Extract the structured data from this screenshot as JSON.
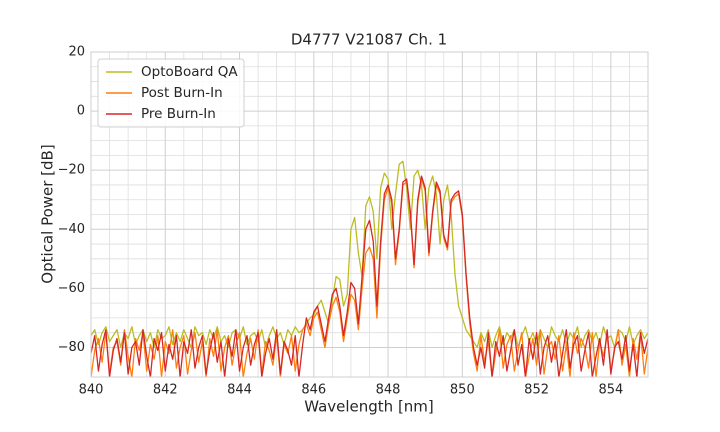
{
  "chart_data": {
    "type": "line",
    "title": "D4777 V21087 Ch. 1",
    "x_label": "Wavelength [nm]",
    "y_label": "Optical Power [dB]",
    "xlim": [
      840,
      855
    ],
    "xticks": [
      840,
      842,
      844,
      846,
      848,
      850,
      852,
      854
    ],
    "ylim": [
      -90,
      20
    ],
    "yticks": [
      {
        "value": -80,
        "label": "−80"
      },
      {
        "value": -60,
        "label": "−60"
      },
      {
        "value": -40,
        "label": "−40"
      },
      {
        "value": -20,
        "label": "−20"
      },
      0,
      20
    ],
    "grid": true,
    "minor_grid_divisions": 4,
    "legend": "upper left",
    "x": [
      840,
      840.1,
      840.2,
      840.3,
      840.4,
      840.5,
      840.6,
      840.7,
      840.8,
      840.9,
      841,
      841.1,
      841.2,
      841.3,
      841.4,
      841.5,
      841.6,
      841.7,
      841.8,
      841.9,
      842,
      842.1,
      842.2,
      842.3,
      842.4,
      842.5,
      842.6,
      842.7,
      842.8,
      842.9,
      843,
      843.1,
      843.2,
      843.3,
      843.4,
      843.5,
      843.6,
      843.7,
      843.8,
      843.9,
      844,
      844.1,
      844.2,
      844.3,
      844.4,
      844.5,
      844.6,
      844.7,
      844.8,
      844.9,
      845,
      845.1,
      845.2,
      845.3,
      845.4,
      845.5,
      845.6,
      845.7,
      845.8,
      845.9,
      846,
      846.1,
      846.2,
      846.3,
      846.4,
      846.5,
      846.6,
      846.7,
      846.8,
      846.9,
      847,
      847.1,
      847.2,
      847.3,
      847.4,
      847.5,
      847.6,
      847.7,
      847.8,
      847.9,
      848,
      848.1,
      848.2,
      848.3,
      848.4,
      848.5,
      848.6,
      848.7,
      848.8,
      848.9,
      849,
      849.1,
      849.2,
      849.3,
      849.4,
      849.5,
      849.6,
      849.7,
      849.8,
      849.9,
      850,
      850.1,
      850.2,
      850.3,
      850.4,
      850.5,
      850.6,
      850.7,
      850.8,
      850.9,
      851,
      851.1,
      851.2,
      851.3,
      851.4,
      851.5,
      851.6,
      851.7,
      851.8,
      851.9,
      852,
      852.1,
      852.2,
      852.3,
      852.4,
      852.5,
      852.6,
      852.7,
      852.8,
      852.9,
      853,
      853.1,
      853.2,
      853.3,
      853.4,
      853.5,
      853.6,
      853.7,
      853.8,
      853.9,
      854,
      854.1,
      854.2,
      854.3,
      854.4,
      854.5,
      854.6,
      854.7,
      854.8,
      854.9,
      855
    ],
    "series": [
      {
        "name": "OptoBoard QA",
        "color": "#bcbd22",
        "values": [
          -76,
          -74,
          -79,
          -75,
          -73,
          -78,
          -76,
          -74,
          -80,
          -75,
          -77,
          -73,
          -79,
          -76,
          -74,
          -78,
          -75,
          -80,
          -74,
          -77,
          -76,
          -73,
          -79,
          -75,
          -78,
          -74,
          -77,
          -80,
          -73,
          -76,
          -75,
          -79,
          -74,
          -77,
          -73,
          -78,
          -76,
          -80,
          -75,
          -74,
          -77,
          -73,
          -79,
          -76,
          -75,
          -78,
          -74,
          -80,
          -76,
          -73,
          -77,
          -75,
          -79,
          -74,
          -76,
          -73,
          -75,
          -74,
          -72,
          -70,
          -69,
          -66,
          -64,
          -68,
          -72,
          -64,
          -56,
          -57,
          -66,
          -62,
          -40,
          -36,
          -48,
          -56,
          -32,
          -29,
          -34,
          -50,
          -26,
          -21,
          -23,
          -40,
          -28,
          -18,
          -17,
          -26,
          -40,
          -22,
          -20,
          -25,
          -40,
          -26,
          -22,
          -28,
          -45,
          -30,
          -25,
          -35,
          -55,
          -66,
          -70,
          -74,
          -76,
          -78,
          -80,
          -75,
          -78,
          -74,
          -80,
          -76,
          -73,
          -79,
          -75,
          -77,
          -74,
          -80,
          -76,
          -73,
          -78,
          -75,
          -79,
          -74,
          -77,
          -80,
          -73,
          -76,
          -78,
          -74,
          -79,
          -75,
          -77,
          -73,
          -80,
          -76,
          -74,
          -78,
          -75,
          -79,
          -73,
          -77,
          -76,
          -80,
          -74,
          -75,
          -78,
          -73,
          -79,
          -76,
          -74,
          -77,
          -75
        ]
      },
      {
        "name": "Post Burn-In",
        "color": "#ff7f0e",
        "values": [
          -90,
          -81,
          -77,
          -85,
          -75,
          -89,
          -80,
          -78,
          -86,
          -74,
          -83,
          -90,
          -77,
          -81,
          -75,
          -88,
          -79,
          -84,
          -76,
          -90,
          -78,
          -82,
          -74,
          -87,
          -80,
          -76,
          -89,
          -81,
          -75,
          -85,
          -78,
          -90,
          -77,
          -83,
          -74,
          -88,
          -80,
          -76,
          -86,
          -79,
          -75,
          -90,
          -82,
          -77,
          -84,
          -74,
          -89,
          -78,
          -81,
          -86,
          -76,
          -90,
          -79,
          -82,
          -76,
          -88,
          -79,
          -74,
          -72,
          -76,
          -70,
          -68,
          -74,
          -80,
          -72,
          -66,
          -63,
          -68,
          -78,
          -70,
          -62,
          -64,
          -74,
          -60,
          -48,
          -46,
          -50,
          -70,
          -46,
          -30,
          -26,
          -31,
          -52,
          -41,
          -25,
          -24,
          -35,
          -53,
          -31,
          -23,
          -27,
          -49,
          -35,
          -25,
          -28,
          -43,
          -47,
          -31,
          -29,
          -28,
          -36,
          -56,
          -72,
          -82,
          -88,
          -76,
          -85,
          -78,
          -90,
          -82,
          -74,
          -87,
          -79,
          -76,
          -88,
          -81,
          -75,
          -90,
          -83,
          -77,
          -86,
          -74,
          -89,
          -80,
          -78,
          -84,
          -76,
          -88,
          -79,
          -90,
          -75,
          -82,
          -77,
          -80,
          -87,
          -75,
          -90,
          -78,
          -83,
          -76,
          -88,
          -81,
          -74,
          -86,
          -79,
          -90,
          -77,
          -84,
          -75,
          -89,
          -80
        ]
      },
      {
        "name": "Pre Burn-In",
        "color": "#d62728",
        "values": [
          -82,
          -76,
          -88,
          -79,
          -74,
          -90,
          -81,
          -77,
          -85,
          -75,
          -89,
          -80,
          -78,
          -86,
          -74,
          -83,
          -90,
          -77,
          -81,
          -75,
          -88,
          -79,
          -84,
          -76,
          -90,
          -78,
          -82,
          -74,
          -87,
          -80,
          -76,
          -89,
          -81,
          -75,
          -85,
          -78,
          -90,
          -77,
          -83,
          -74,
          -88,
          -80,
          -76,
          -86,
          -79,
          -75,
          -90,
          -82,
          -77,
          -84,
          -74,
          -89,
          -78,
          -81,
          -86,
          -76,
          -90,
          -79,
          -70,
          -74,
          -68,
          -66,
          -72,
          -78,
          -70,
          -62,
          -60,
          -66,
          -76,
          -68,
          -58,
          -60,
          -72,
          -56,
          -40,
          -37,
          -44,
          -66,
          -44,
          -28,
          -25,
          -30,
          -50,
          -40,
          -24,
          -23,
          -34,
          -52,
          -30,
          -22,
          -26,
          -48,
          -34,
          -24,
          -27,
          -42,
          -46,
          -30,
          -28,
          -27,
          -35,
          -55,
          -70,
          -80,
          -86,
          -80,
          -87,
          -75,
          -90,
          -78,
          -83,
          -76,
          -88,
          -81,
          -74,
          -86,
          -79,
          -90,
          -77,
          -84,
          -75,
          -89,
          -80,
          -76,
          -85,
          -78,
          -90,
          -82,
          -74,
          -87,
          -79,
          -76,
          -88,
          -81,
          -75,
          -90,
          -83,
          -77,
          -86,
          -74,
          -89,
          -80,
          -78,
          -84,
          -76,
          -88,
          -79,
          -90,
          -75,
          -82,
          -77
        ]
      }
    ]
  }
}
